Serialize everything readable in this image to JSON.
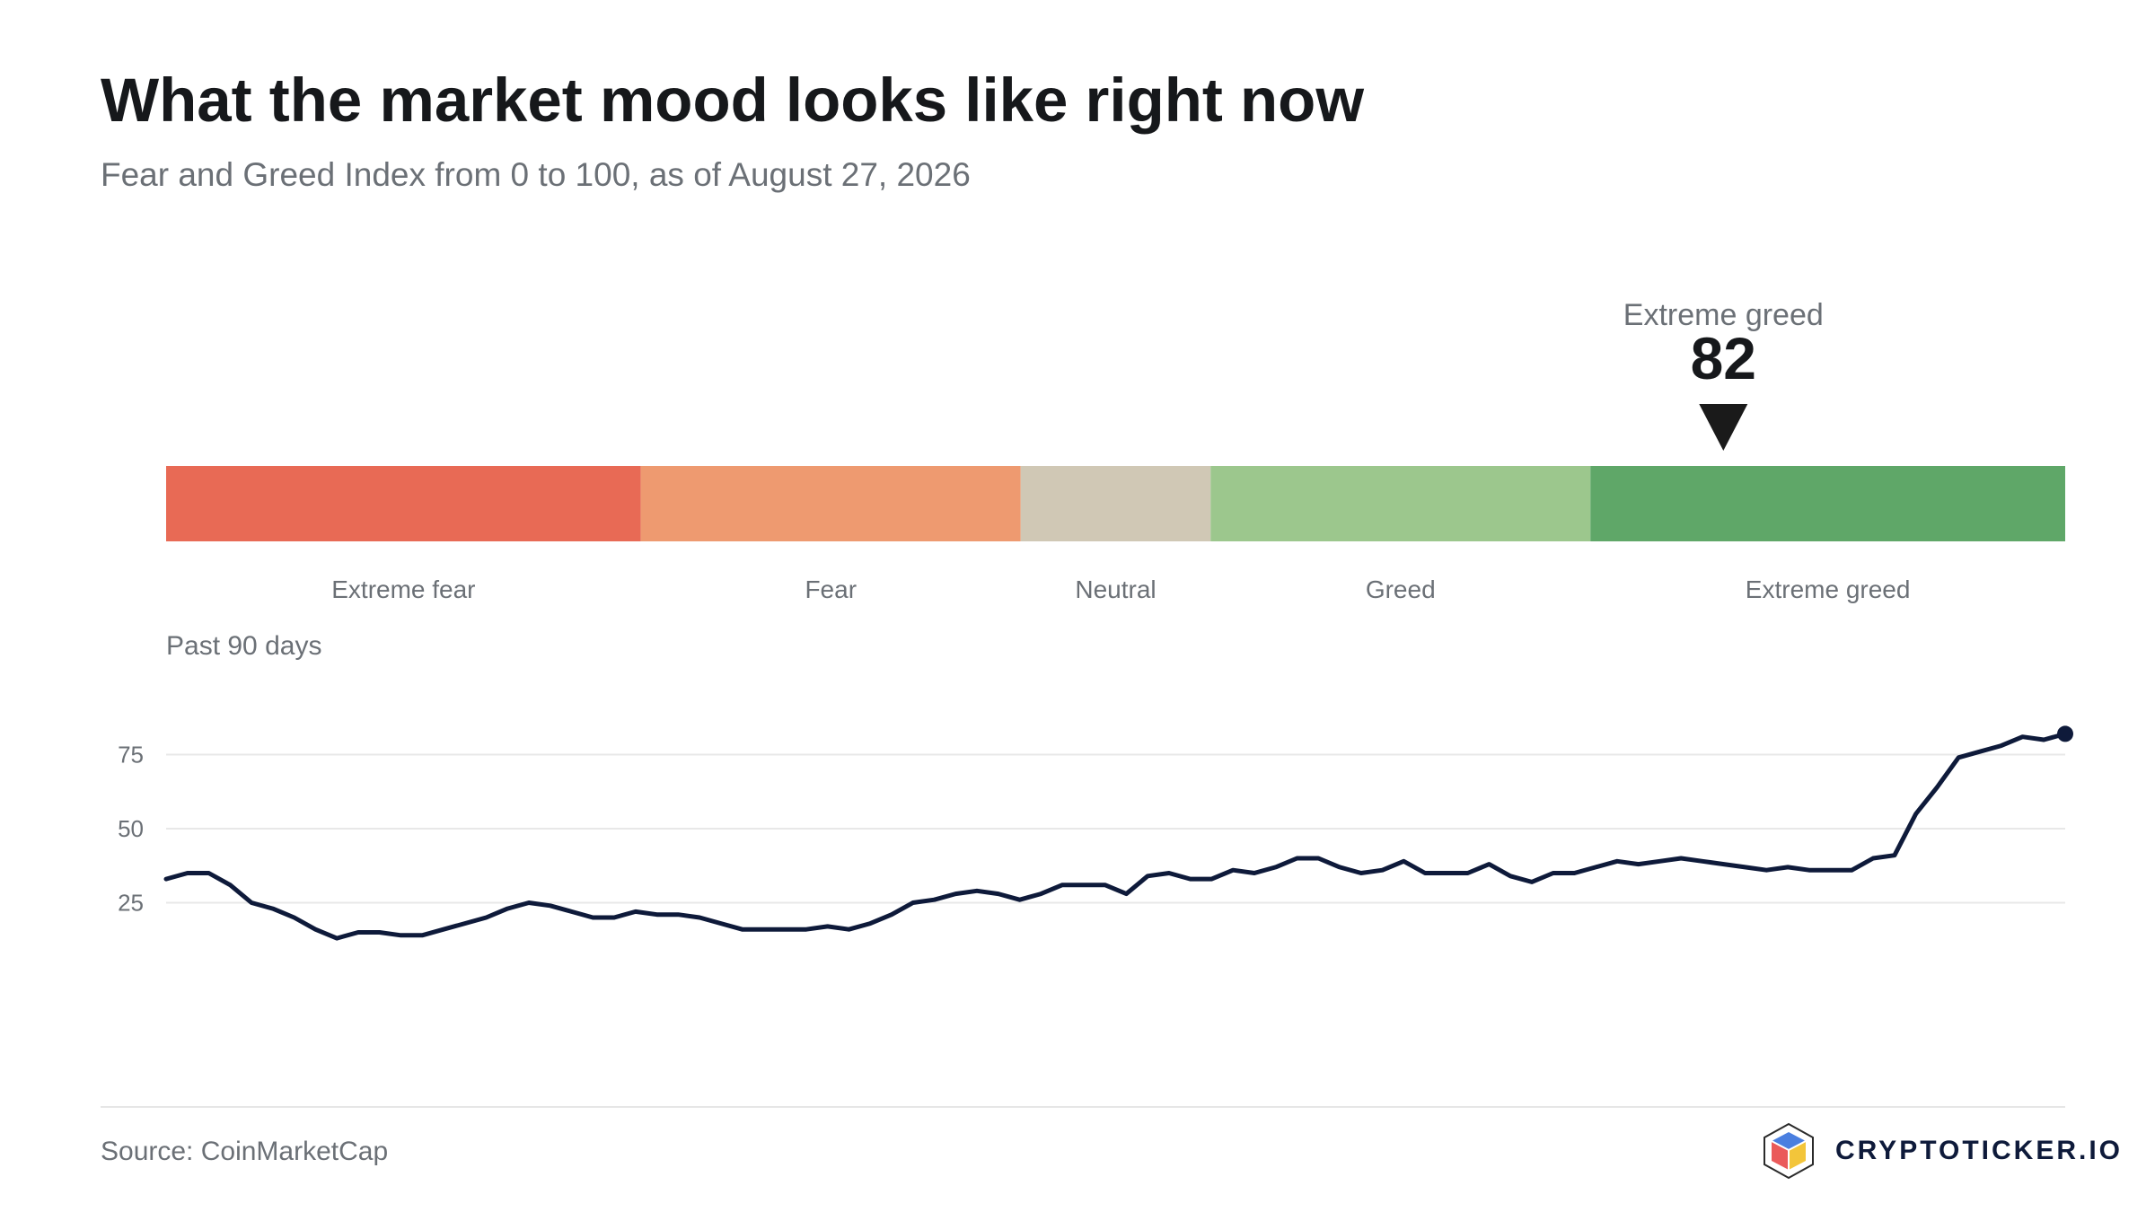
{
  "title": "What the market mood looks like right now",
  "subtitle": "Fear and Greed Index from 0 to 100, as of August 27, 2026",
  "source": "Source: CoinMarketCap",
  "brand": "CRYPTOTICKER.IO",
  "brand_icon": "cube-logo-icon",
  "colors": {
    "extreme_fear": "#e86a55",
    "fear": "#ee9a70",
    "neutral": "#d0c8b5",
    "greed": "#9cc78d",
    "extreme_greed": "#5fa768",
    "line": "#0e1a3a",
    "marker": "#1a1a1a"
  },
  "chart_data": [
    {
      "type": "gauge",
      "range": [
        0,
        100
      ],
      "value": 82,
      "value_label": "Extreme greed",
      "segments": [
        {
          "label": "Extreme fear",
          "from": 0,
          "to": 25
        },
        {
          "label": "Fear",
          "from": 25,
          "to": 45
        },
        {
          "label": "Neutral",
          "from": 45,
          "to": 55
        },
        {
          "label": "Greed",
          "from": 55,
          "to": 75
        },
        {
          "label": "Extreme greed",
          "from": 75,
          "to": 100
        }
      ]
    },
    {
      "type": "line",
      "label": "Past 90 days",
      "ylim": [
        0,
        100
      ],
      "yticks": [
        25,
        50,
        75
      ],
      "grid": true,
      "values": [
        33,
        35,
        35,
        31,
        25,
        23,
        20,
        16,
        13,
        15,
        15,
        14,
        14,
        16,
        18,
        20,
        23,
        25,
        24,
        22,
        20,
        20,
        22,
        21,
        21,
        20,
        18,
        16,
        16,
        16,
        16,
        17,
        16,
        18,
        21,
        25,
        26,
        28,
        29,
        28,
        26,
        28,
        31,
        31,
        31,
        28,
        34,
        35,
        33,
        33,
        36,
        35,
        37,
        40,
        40,
        37,
        35,
        36,
        39,
        35,
        35,
        35,
        38,
        34,
        32,
        35,
        35,
        37,
        39,
        38,
        39,
        40,
        39,
        38,
        37,
        36,
        37,
        36,
        36,
        36,
        40,
        41,
        55,
        64,
        74,
        76,
        78,
        81,
        80,
        82
      ],
      "end_marker": true
    }
  ]
}
